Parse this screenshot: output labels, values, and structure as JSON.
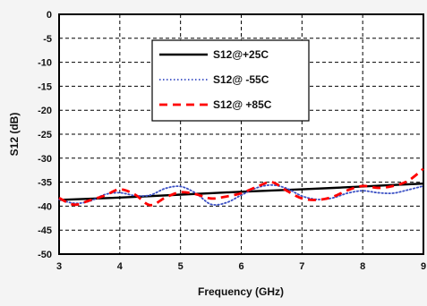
{
  "chart_data": {
    "type": "line",
    "xlabel": "Frequency (GHz)",
    "ylabel": "S12 (dB)",
    "xlim": [
      3,
      9
    ],
    "ylim": [
      -50,
      0
    ],
    "x_ticks": [
      "3",
      "4",
      "5",
      "6",
      "7",
      "8",
      "9"
    ],
    "y_ticks": [
      "0",
      "-5",
      "-10",
      "-15",
      "-20",
      "-25",
      "-30",
      "-35",
      "-40",
      "-45",
      "-50"
    ],
    "grid": true,
    "legend_position": "top-center",
    "series": [
      {
        "name": "S12@+25C",
        "color": "#000000",
        "style": "solid",
        "x": [
          3.0,
          4.0,
          5.0,
          6.0,
          7.0,
          8.0,
          9.0
        ],
        "y": [
          -38.7,
          -38.2,
          -37.6,
          -37.0,
          -36.5,
          -35.9,
          -35.3
        ]
      },
      {
        "name": "S12@ -55C",
        "color": "#3a4fc4",
        "style": "dotted",
        "x": [
          3.0,
          3.25,
          3.5,
          3.75,
          4.0,
          4.25,
          4.5,
          4.75,
          5.0,
          5.25,
          5.5,
          5.75,
          6.0,
          6.25,
          6.5,
          6.75,
          7.0,
          7.25,
          7.5,
          7.75,
          8.0,
          8.25,
          8.5,
          8.75,
          9.0
        ],
        "y": [
          -38.6,
          -39.4,
          -39.0,
          -37.6,
          -37.2,
          -37.8,
          -37.7,
          -36.3,
          -35.9,
          -37.3,
          -39.6,
          -39.3,
          -37.7,
          -36.2,
          -35.6,
          -36.3,
          -37.9,
          -38.6,
          -38.3,
          -37.3,
          -36.8,
          -37.2,
          -37.3,
          -36.6,
          -35.8
        ]
      },
      {
        "name": "S12@ +85C",
        "color": "#ff0000",
        "style": "dashed",
        "x": [
          3.0,
          3.25,
          3.5,
          3.75,
          4.0,
          4.25,
          4.5,
          4.75,
          5.0,
          5.25,
          5.5,
          5.75,
          6.0,
          6.25,
          6.5,
          6.75,
          7.0,
          7.25,
          7.5,
          7.75,
          8.0,
          8.25,
          8.5,
          8.75,
          9.0
        ],
        "y": [
          -38.3,
          -39.7,
          -38.8,
          -37.8,
          -36.5,
          -37.6,
          -39.8,
          -38.2,
          -37.1,
          -37.5,
          -38.4,
          -38.0,
          -37.3,
          -36.0,
          -35.0,
          -36.8,
          -38.4,
          -38.7,
          -38.1,
          -36.7,
          -35.8,
          -36.2,
          -35.8,
          -34.7,
          -32.2
        ]
      }
    ]
  }
}
